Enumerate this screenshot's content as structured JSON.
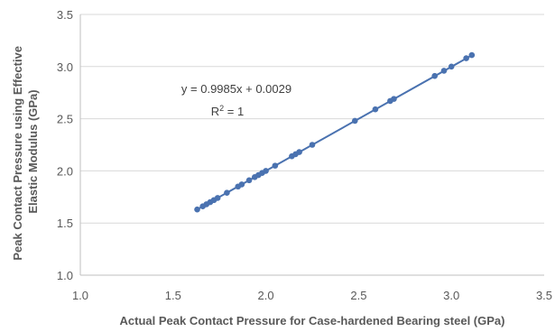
{
  "chart_data": {
    "type": "scatter",
    "xlabel": "Actual Peak Contact Pressure for Case-hardened Bearing steel (GPa)",
    "ylabel_lines": [
      "Peak Contact Pressure using Effective",
      "Elastic Modulus (GPa)"
    ],
    "xlim": [
      1.0,
      3.5
    ],
    "ylim": [
      1.0,
      3.5
    ],
    "x_ticks": [
      "1.0",
      "1.5",
      "2.0",
      "2.5",
      "3.0",
      "3.5"
    ],
    "y_ticks": [
      "1.0",
      "1.5",
      "2.0",
      "2.5",
      "3.0",
      "3.5"
    ],
    "grid": "horizontal",
    "trendline": {
      "type": "linear",
      "slope": 0.9985,
      "intercept": 0.0029
    },
    "annotations": {
      "equation": "y = 0.9985x + 0.0029",
      "r2_main": "R",
      "r2_sup": "2",
      "r2_tail": " = 1"
    },
    "colors": {
      "marker": "#4a72b0",
      "line": "#4a72b0",
      "grid": "#d9d9d9",
      "text": "#595959"
    },
    "x": [
      1.63,
      1.66,
      1.68,
      1.7,
      1.72,
      1.74,
      1.79,
      1.85,
      1.87,
      1.91,
      1.94,
      1.96,
      1.98,
      2.0,
      2.05,
      2.14,
      2.16,
      2.18,
      2.25,
      2.48,
      2.59,
      2.67,
      2.69,
      2.91,
      2.96,
      3.0,
      3.08,
      3.11
    ],
    "y": [
      1.63,
      1.66,
      1.68,
      1.7,
      1.72,
      1.74,
      1.79,
      1.85,
      1.87,
      1.91,
      1.94,
      1.96,
      1.98,
      2.0,
      2.05,
      2.14,
      2.16,
      2.18,
      2.25,
      2.48,
      2.59,
      2.67,
      2.69,
      2.91,
      2.96,
      3.0,
      3.08,
      3.11
    ]
  }
}
